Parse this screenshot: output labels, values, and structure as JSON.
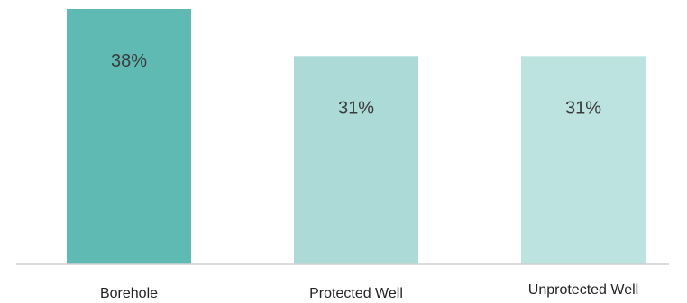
{
  "chart_data": {
    "type": "bar",
    "categories": [
      "Borehole",
      "Protected Well",
      "Unprotected Well"
    ],
    "values": [
      38,
      31,
      31
    ],
    "value_labels": [
      "38%",
      "31%",
      "31%"
    ],
    "unit": "%",
    "title": "",
    "xlabel": "",
    "ylabel": "",
    "ylim": [
      0,
      38
    ],
    "grid": false,
    "legend": "none",
    "colors": [
      "#5fbab4",
      "#acdbd7",
      "#bde3e0"
    ],
    "axis_color": "#d0d0d0"
  }
}
